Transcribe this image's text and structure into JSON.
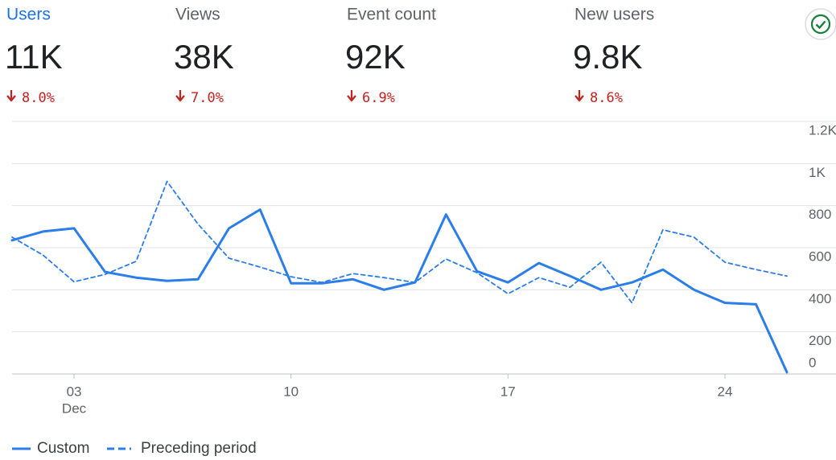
{
  "metrics": [
    {
      "label": "Users",
      "value": "11K",
      "change": "8.0%"
    },
    {
      "label": "Views",
      "value": "38K",
      "change": "7.0%"
    },
    {
      "label": "Event count",
      "value": "92K",
      "change": "6.9%"
    },
    {
      "label": "New users",
      "value": "9.8K",
      "change": "8.6%"
    }
  ],
  "chart_data": {
    "type": "line",
    "x": [
      1,
      2,
      3,
      4,
      5,
      6,
      7,
      8,
      9,
      10,
      11,
      12,
      13,
      14,
      15,
      16,
      17,
      18,
      19,
      20,
      21,
      22,
      23,
      24,
      25,
      26
    ],
    "xlim": [
      1,
      26
    ],
    "xticks": [
      {
        "value": 3,
        "label": "03"
      },
      {
        "value": 10,
        "label": "10"
      },
      {
        "value": 17,
        "label": "17"
      },
      {
        "value": 24,
        "label": "24"
      }
    ],
    "x_month_label": "Dec",
    "ylim": [
      0,
      1200
    ],
    "yticks": [
      0,
      {
        "value": 200,
        "label": "200"
      },
      {
        "value": 400,
        "label": "400"
      },
      {
        "value": 600,
        "label": "600"
      },
      {
        "value": 800,
        "label": "800"
      },
      {
        "value": 1000,
        "label": "1K"
      },
      {
        "value": 1200,
        "label": "1.2K"
      }
    ],
    "grid": true,
    "legend": "bottom-left",
    "series": [
      {
        "name": "Custom",
        "color": "#2b7de9",
        "dashed": false,
        "values": [
          635,
          677,
          692,
          485,
          458,
          442,
          450,
          692,
          781,
          431,
          431,
          450,
          400,
          435,
          758,
          488,
          435,
          527,
          465,
          400,
          435,
          496,
          400,
          338,
          331,
          8
        ]
      },
      {
        "name": "Preceding period",
        "color": "#2b7de9",
        "dashed": true,
        "values": [
          650,
          565,
          438,
          473,
          535,
          915,
          712,
          550,
          508,
          462,
          435,
          477,
          458,
          435,
          546,
          481,
          381,
          458,
          412,
          531,
          338,
          685,
          650,
          531,
          496,
          465
        ]
      }
    ]
  }
}
